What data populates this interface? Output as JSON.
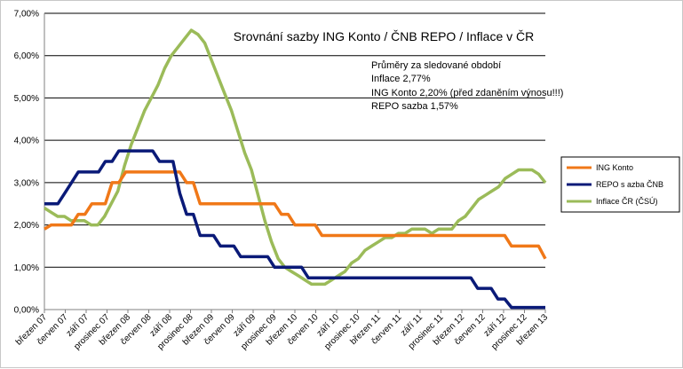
{
  "chart_data": {
    "type": "line",
    "title": "Srovnání  sazby ING Konto  / ČNB REPO / Inflace v ČR",
    "annotation": [
      "Průměry za sledované období",
      "Inflace 2,77%",
      "ING Konto   2,20% (před zdaněním výnosu!!!)",
      "REPO sazba 1,57%"
    ],
    "ylim": [
      0,
      7
    ],
    "yticks": [
      "0,00%",
      "1,00%",
      "2,00%",
      "3,00%",
      "4,00%",
      "5,00%",
      "6,00%",
      "7,00%"
    ],
    "grid": true,
    "legend_position": "right",
    "x_labels": [
      "březen 07",
      "červen 07",
      "září 07",
      "prosinec 07",
      "březen 08",
      "červen 08",
      "září 08",
      "prosinec 08",
      "březen 09",
      "červen 09",
      "září 09",
      "prosinec 09",
      "březen 10",
      "červen 10",
      "září 10",
      "prosinec 10",
      "březen 11",
      "červen 11",
      "září 11",
      "prosinec 11",
      "březen 12",
      "červen 12",
      "září 12",
      "prosinec 12",
      "březen 13"
    ],
    "series": [
      {
        "name": "ING Konto",
        "color": "#F07818",
        "values": [
          1.9,
          2.0,
          2.0,
          2.0,
          2.0,
          2.25,
          2.25,
          2.5,
          2.5,
          2.5,
          3.0,
          3.0,
          3.25,
          3.25,
          3.25,
          3.25,
          3.25,
          3.25,
          3.25,
          3.25,
          3.25,
          3.0,
          3.0,
          2.5,
          2.5,
          2.5,
          2.5,
          2.5,
          2.5,
          2.5,
          2.5,
          2.5,
          2.5,
          2.5,
          2.5,
          2.25,
          2.25,
          2.0,
          2.0,
          2.0,
          2.0,
          1.75,
          1.75,
          1.75,
          1.75,
          1.75,
          1.75,
          1.75,
          1.75,
          1.75,
          1.75,
          1.75,
          1.75,
          1.75,
          1.75,
          1.75,
          1.75,
          1.75,
          1.75,
          1.75,
          1.75,
          1.75,
          1.75,
          1.75,
          1.75,
          1.75,
          1.75,
          1.75,
          1.75,
          1.5,
          1.5,
          1.5,
          1.5,
          1.5,
          1.2
        ]
      },
      {
        "name": "REPO s azba ČNB",
        "color": "#0A1A78",
        "values": [
          2.5,
          2.5,
          2.5,
          2.75,
          3.0,
          3.25,
          3.25,
          3.25,
          3.25,
          3.5,
          3.5,
          3.75,
          3.75,
          3.75,
          3.75,
          3.75,
          3.75,
          3.5,
          3.5,
          3.5,
          2.75,
          2.25,
          2.25,
          1.75,
          1.75,
          1.75,
          1.5,
          1.5,
          1.5,
          1.25,
          1.25,
          1.25,
          1.25,
          1.25,
          1.0,
          1.0,
          1.0,
          1.0,
          1.0,
          0.75,
          0.75,
          0.75,
          0.75,
          0.75,
          0.75,
          0.75,
          0.75,
          0.75,
          0.75,
          0.75,
          0.75,
          0.75,
          0.75,
          0.75,
          0.75,
          0.75,
          0.75,
          0.75,
          0.75,
          0.75,
          0.75,
          0.75,
          0.75,
          0.75,
          0.5,
          0.5,
          0.5,
          0.25,
          0.25,
          0.05,
          0.05,
          0.05,
          0.05,
          0.05,
          0.05
        ]
      },
      {
        "name": "Inflace ČR (ČSÚ)",
        "color": "#9BBB59",
        "values": [
          2.4,
          2.3,
          2.2,
          2.2,
          2.1,
          2.1,
          2.1,
          2.0,
          2.0,
          2.2,
          2.5,
          2.8,
          3.4,
          3.9,
          4.3,
          4.7,
          5.0,
          5.3,
          5.7,
          6.0,
          6.2,
          6.4,
          6.6,
          6.5,
          6.3,
          5.9,
          5.5,
          5.1,
          4.7,
          4.2,
          3.7,
          3.3,
          2.7,
          2.1,
          1.6,
          1.2,
          1.0,
          0.9,
          0.8,
          0.7,
          0.6,
          0.6,
          0.6,
          0.7,
          0.8,
          0.9,
          1.1,
          1.2,
          1.4,
          1.5,
          1.6,
          1.7,
          1.7,
          1.8,
          1.8,
          1.9,
          1.9,
          1.9,
          1.8,
          1.9,
          1.9,
          1.9,
          2.1,
          2.2,
          2.4,
          2.6,
          2.7,
          2.8,
          2.9,
          3.1,
          3.2,
          3.3,
          3.3,
          3.3,
          3.2,
          3.0
        ]
      }
    ]
  }
}
